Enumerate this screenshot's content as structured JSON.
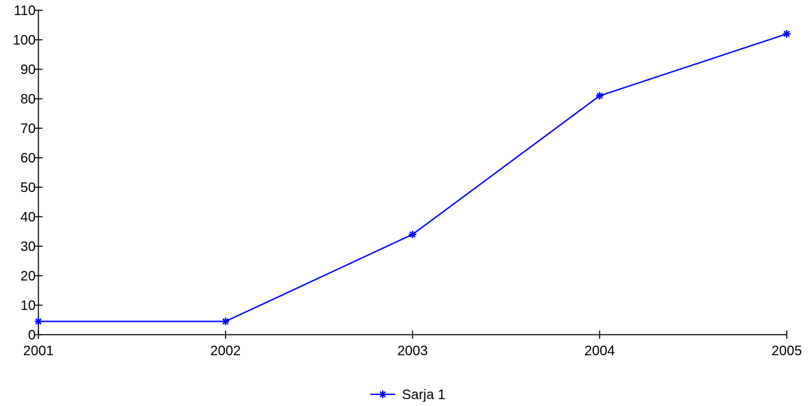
{
  "chart_data": {
    "type": "line",
    "title": "",
    "xlabel": "",
    "ylabel": "",
    "categories": [
      "2001",
      "2002",
      "2003",
      "2004",
      "2005"
    ],
    "ylim": [
      0,
      110
    ],
    "yticks": [
      "0",
      "10",
      "20",
      "30",
      "40",
      "50",
      "60",
      "70",
      "80",
      "90",
      "100",
      "110"
    ],
    "grid": false,
    "legend_position": "bottom-center",
    "series": [
      {
        "name": "Sarja 1",
        "values": [
          4.5,
          4.5,
          34,
          81,
          102
        ],
        "color": "#0000ff",
        "marker": "star"
      }
    ]
  }
}
